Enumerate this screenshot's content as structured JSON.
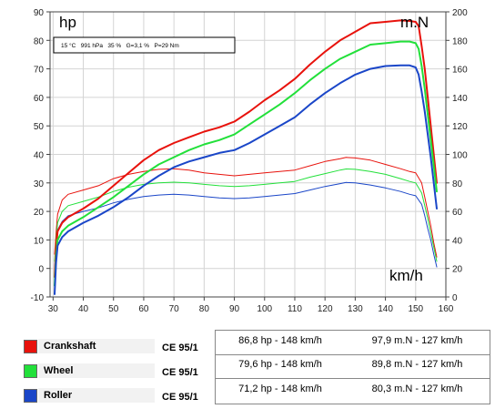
{
  "chart_data": {
    "type": "line",
    "x_unit": "km/h",
    "left_unit": "hp",
    "right_unit": "m.N",
    "conditions": "15 °C   991 hPa   35 %   G=3,1 %   P=29 Nm",
    "xlim": [
      29,
      160
    ],
    "y_left_lim": [
      -10,
      90
    ],
    "y_right_lim": [
      0,
      200
    ],
    "x_ticks": [
      30,
      40,
      50,
      60,
      70,
      80,
      90,
      100,
      110,
      120,
      130,
      140,
      150,
      160
    ],
    "y_left_ticks": [
      -10,
      0,
      10,
      20,
      30,
      40,
      50,
      60,
      70,
      80,
      90
    ],
    "y_right_ticks": [
      0,
      20,
      40,
      60,
      80,
      100,
      120,
      140,
      160,
      180,
      200
    ],
    "grid": true,
    "series": [
      {
        "name": "Crankshaft",
        "quantity": "power",
        "axis": "left",
        "color": "#e8120c",
        "width": 2,
        "points": [
          [
            30.5,
            -3
          ],
          [
            31,
            7
          ],
          [
            31.5,
            13
          ],
          [
            33,
            16
          ],
          [
            35,
            18
          ],
          [
            40,
            21
          ],
          [
            45,
            24.5
          ],
          [
            50,
            29
          ],
          [
            55,
            33.5
          ],
          [
            60,
            38
          ],
          [
            65,
            41.5
          ],
          [
            70,
            44
          ],
          [
            75,
            46
          ],
          [
            80,
            48
          ],
          [
            85,
            49.5
          ],
          [
            90,
            51.5
          ],
          [
            95,
            55
          ],
          [
            100,
            59
          ],
          [
            105,
            62.5
          ],
          [
            110,
            66.5
          ],
          [
            115,
            71.5
          ],
          [
            120,
            76
          ],
          [
            125,
            80
          ],
          [
            130,
            83
          ],
          [
            135,
            86
          ],
          [
            140,
            86.5
          ],
          [
            145,
            87
          ],
          [
            148,
            86.8
          ],
          [
            150,
            86.5
          ],
          [
            151,
            85
          ],
          [
            152,
            78
          ],
          [
            153,
            70
          ],
          [
            154,
            60
          ],
          [
            155,
            50
          ],
          [
            156,
            40
          ],
          [
            157,
            30
          ]
        ]
      },
      {
        "name": "Wheel",
        "quantity": "power",
        "axis": "left",
        "color": "#22e03a",
        "width": 2,
        "points": [
          [
            30.5,
            -6
          ],
          [
            31,
            4
          ],
          [
            31.5,
            10
          ],
          [
            33,
            13
          ],
          [
            35,
            15
          ],
          [
            40,
            18
          ],
          [
            45,
            21.5
          ],
          [
            50,
            25
          ],
          [
            55,
            29
          ],
          [
            60,
            33
          ],
          [
            65,
            36.5
          ],
          [
            70,
            39
          ],
          [
            75,
            41.5
          ],
          [
            80,
            43.5
          ],
          [
            85,
            45
          ],
          [
            90,
            47
          ],
          [
            95,
            50.5
          ],
          [
            100,
            54
          ],
          [
            105,
            57.5
          ],
          [
            110,
            61.5
          ],
          [
            115,
            66
          ],
          [
            120,
            70
          ],
          [
            125,
            73.5
          ],
          [
            130,
            76
          ],
          [
            135,
            78.5
          ],
          [
            140,
            79
          ],
          [
            145,
            79.6
          ],
          [
            148,
            79.6
          ],
          [
            150,
            79
          ],
          [
            151,
            77
          ],
          [
            152,
            71
          ],
          [
            153,
            63
          ],
          [
            154,
            54
          ],
          [
            155,
            45
          ],
          [
            156,
            36
          ],
          [
            157,
            27
          ]
        ]
      },
      {
        "name": "Roller",
        "quantity": "power",
        "axis": "left",
        "color": "#1a46c8",
        "width": 2,
        "points": [
          [
            30.5,
            -9
          ],
          [
            31,
            2
          ],
          [
            31.5,
            8
          ],
          [
            33,
            11
          ],
          [
            35,
            13
          ],
          [
            40,
            16
          ],
          [
            45,
            18.5
          ],
          [
            50,
            21.5
          ],
          [
            55,
            25
          ],
          [
            60,
            29
          ],
          [
            65,
            32.5
          ],
          [
            70,
            35.5
          ],
          [
            75,
            37.5
          ],
          [
            80,
            39
          ],
          [
            85,
            40.5
          ],
          [
            90,
            41.5
          ],
          [
            95,
            44
          ],
          [
            100,
            47
          ],
          [
            105,
            50
          ],
          [
            110,
            53
          ],
          [
            115,
            57.5
          ],
          [
            120,
            61.5
          ],
          [
            125,
            65
          ],
          [
            130,
            68
          ],
          [
            135,
            70
          ],
          [
            140,
            71
          ],
          [
            145,
            71.2
          ],
          [
            148,
            71.2
          ],
          [
            150,
            70.5
          ],
          [
            151,
            68
          ],
          [
            152,
            62
          ],
          [
            153,
            55
          ],
          [
            154,
            47
          ],
          [
            155,
            39
          ],
          [
            156,
            30
          ],
          [
            157,
            21
          ]
        ]
      },
      {
        "name": "Crankshaft",
        "quantity": "torque",
        "axis": "right",
        "color": "#e8120c",
        "width": 1,
        "points": [
          [
            30.5,
            30
          ],
          [
            31,
            45
          ],
          [
            31.5,
            58
          ],
          [
            33,
            68
          ],
          [
            35,
            72
          ],
          [
            40,
            75
          ],
          [
            45,
            78
          ],
          [
            50,
            83
          ],
          [
            55,
            86
          ],
          [
            60,
            88
          ],
          [
            65,
            89.5
          ],
          [
            70,
            90
          ],
          [
            75,
            89
          ],
          [
            80,
            87
          ],
          [
            85,
            86
          ],
          [
            90,
            85
          ],
          [
            95,
            86
          ],
          [
            100,
            87
          ],
          [
            105,
            88
          ],
          [
            110,
            89
          ],
          [
            115,
            92
          ],
          [
            120,
            95
          ],
          [
            125,
            97
          ],
          [
            127,
            97.9
          ],
          [
            130,
            97.5
          ],
          [
            135,
            96
          ],
          [
            140,
            93
          ],
          [
            145,
            90
          ],
          [
            148,
            88
          ],
          [
            150,
            87
          ],
          [
            152,
            80
          ],
          [
            153,
            70
          ],
          [
            154,
            60
          ],
          [
            155,
            50
          ],
          [
            156,
            38
          ],
          [
            157,
            28
          ]
        ]
      },
      {
        "name": "Wheel",
        "quantity": "torque",
        "axis": "right",
        "color": "#22e03a",
        "width": 1,
        "points": [
          [
            30.5,
            25
          ],
          [
            31,
            40
          ],
          [
            31.5,
            52
          ],
          [
            33,
            60
          ],
          [
            35,
            64
          ],
          [
            40,
            67
          ],
          [
            45,
            70
          ],
          [
            50,
            74
          ],
          [
            55,
            77
          ],
          [
            60,
            79
          ],
          [
            65,
            80
          ],
          [
            70,
            80.5
          ],
          [
            75,
            80
          ],
          [
            80,
            79
          ],
          [
            85,
            78
          ],
          [
            90,
            77.5
          ],
          [
            95,
            78
          ],
          [
            100,
            79
          ],
          [
            105,
            80
          ],
          [
            110,
            81
          ],
          [
            115,
            84
          ],
          [
            120,
            86.5
          ],
          [
            125,
            89
          ],
          [
            127,
            89.8
          ],
          [
            130,
            89.5
          ],
          [
            135,
            88
          ],
          [
            140,
            86
          ],
          [
            145,
            83
          ],
          [
            148,
            81
          ],
          [
            150,
            80
          ],
          [
            152,
            73
          ],
          [
            153,
            64
          ],
          [
            154,
            55
          ],
          [
            155,
            45
          ],
          [
            156,
            35
          ],
          [
            157,
            25
          ]
        ]
      },
      {
        "name": "Roller",
        "quantity": "torque",
        "axis": "right",
        "color": "#1a46c8",
        "width": 1,
        "points": [
          [
            30.5,
            20
          ],
          [
            31,
            35
          ],
          [
            31.5,
            47
          ],
          [
            33,
            53
          ],
          [
            35,
            57
          ],
          [
            40,
            60
          ],
          [
            45,
            62.5
          ],
          [
            50,
            66
          ],
          [
            55,
            68.5
          ],
          [
            60,
            70.5
          ],
          [
            65,
            71.5
          ],
          [
            70,
            72
          ],
          [
            75,
            71.5
          ],
          [
            80,
            70.5
          ],
          [
            85,
            69.5
          ],
          [
            90,
            69
          ],
          [
            95,
            69.5
          ],
          [
            100,
            70.5
          ],
          [
            105,
            71.5
          ],
          [
            110,
            72.5
          ],
          [
            115,
            75
          ],
          [
            120,
            77.5
          ],
          [
            125,
            79.5
          ],
          [
            127,
            80.3
          ],
          [
            130,
            80
          ],
          [
            135,
            78.5
          ],
          [
            140,
            76.5
          ],
          [
            145,
            74
          ],
          [
            148,
            72
          ],
          [
            150,
            71
          ],
          [
            152,
            65
          ],
          [
            153,
            57
          ],
          [
            154,
            48
          ],
          [
            155,
            40
          ],
          [
            156,
            30
          ],
          [
            157,
            21
          ]
        ]
      }
    ]
  },
  "legend": [
    {
      "name": "Crankshaft",
      "color": "#e8120c",
      "standard": "CE 95/1"
    },
    {
      "name": "Wheel",
      "color": "#22e03a",
      "standard": "CE 95/1"
    },
    {
      "name": "Roller",
      "color": "#1a46c8",
      "standard": "CE 95/1"
    }
  ],
  "results": [
    {
      "power": "86,8 hp - 148 km/h",
      "torque": "97,9 m.N - 127 km/h"
    },
    {
      "power": "79,6 hp - 148 km/h",
      "torque": "89,8 m.N - 127 km/h"
    },
    {
      "power": "71,2 hp - 148 km/h",
      "torque": "80,3 m.N - 127 km/h"
    }
  ]
}
